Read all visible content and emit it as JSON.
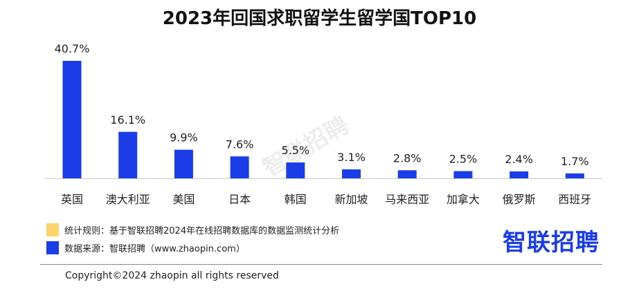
{
  "chart_data": {
    "type": "bar",
    "title": "2023年回国求职留学生留学国TOP10",
    "categories": [
      "英国",
      "澳大利亚",
      "美国",
      "日本",
      "韩国",
      "新加坡",
      "马来西亚",
      "加拿大",
      "俄罗斯",
      "西班牙"
    ],
    "values": [
      40.7,
      16.1,
      9.9,
      7.6,
      5.5,
      3.1,
      2.8,
      2.5,
      2.4,
      1.7
    ],
    "labels": [
      "40.7%",
      "16.1%",
      "9.9%",
      "7.6%",
      "5.5%",
      "3.1%",
      "2.8%",
      "2.5%",
      "2.4%",
      "1.7%"
    ],
    "unit": "%",
    "ylim": [
      0,
      42
    ],
    "grid": false,
    "bar_color": "#1a3de8"
  },
  "legend": [
    {
      "text": "统计规则：基于智联招聘2024年在线招聘数据库的数据监测统计分析",
      "color": "#fdd36b"
    },
    {
      "text": "数据来源：智联招聘（www.zhaopin.com）",
      "color": "#1a3de8"
    }
  ],
  "logo": "智联招聘",
  "watermark": "智联招聘",
  "copyright": "Copyright©2024 zhaopin all rights reserved"
}
